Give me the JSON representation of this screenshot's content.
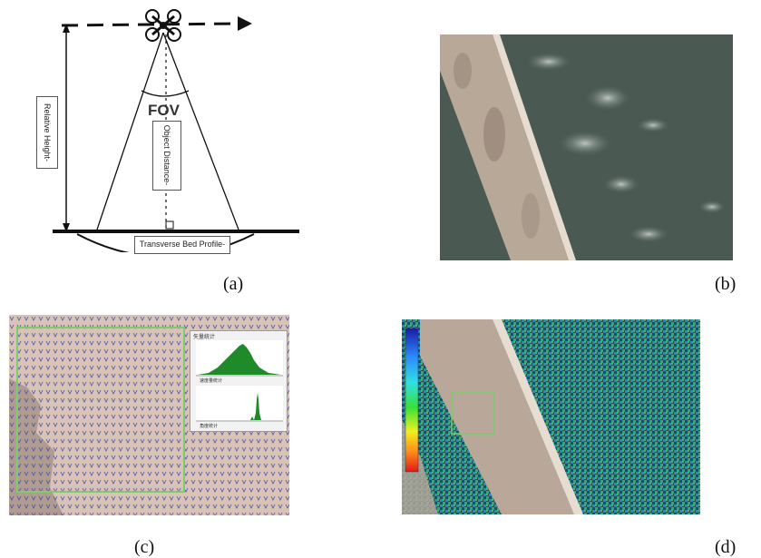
{
  "figure": {
    "captions": {
      "a": "(a)",
      "b": "(b)",
      "c": "(c)",
      "d": "(d)"
    },
    "panel_a": {
      "fov_label": "FOV",
      "relative_height_label": "Relative Height-",
      "object_distance_label": "Object Distance-",
      "bed_profile_label": "Transverse Bed Profile-"
    },
    "panel_c": {
      "histogram_title": "矢量统计",
      "histogram_label_1": "速度量统计",
      "histogram_label_2": "角度统计"
    },
    "colors": {
      "green_box": "#7ecb6b",
      "water": "#3f5248",
      "bridge": "#b9a89a",
      "vectors": "#4a4fa8"
    }
  }
}
